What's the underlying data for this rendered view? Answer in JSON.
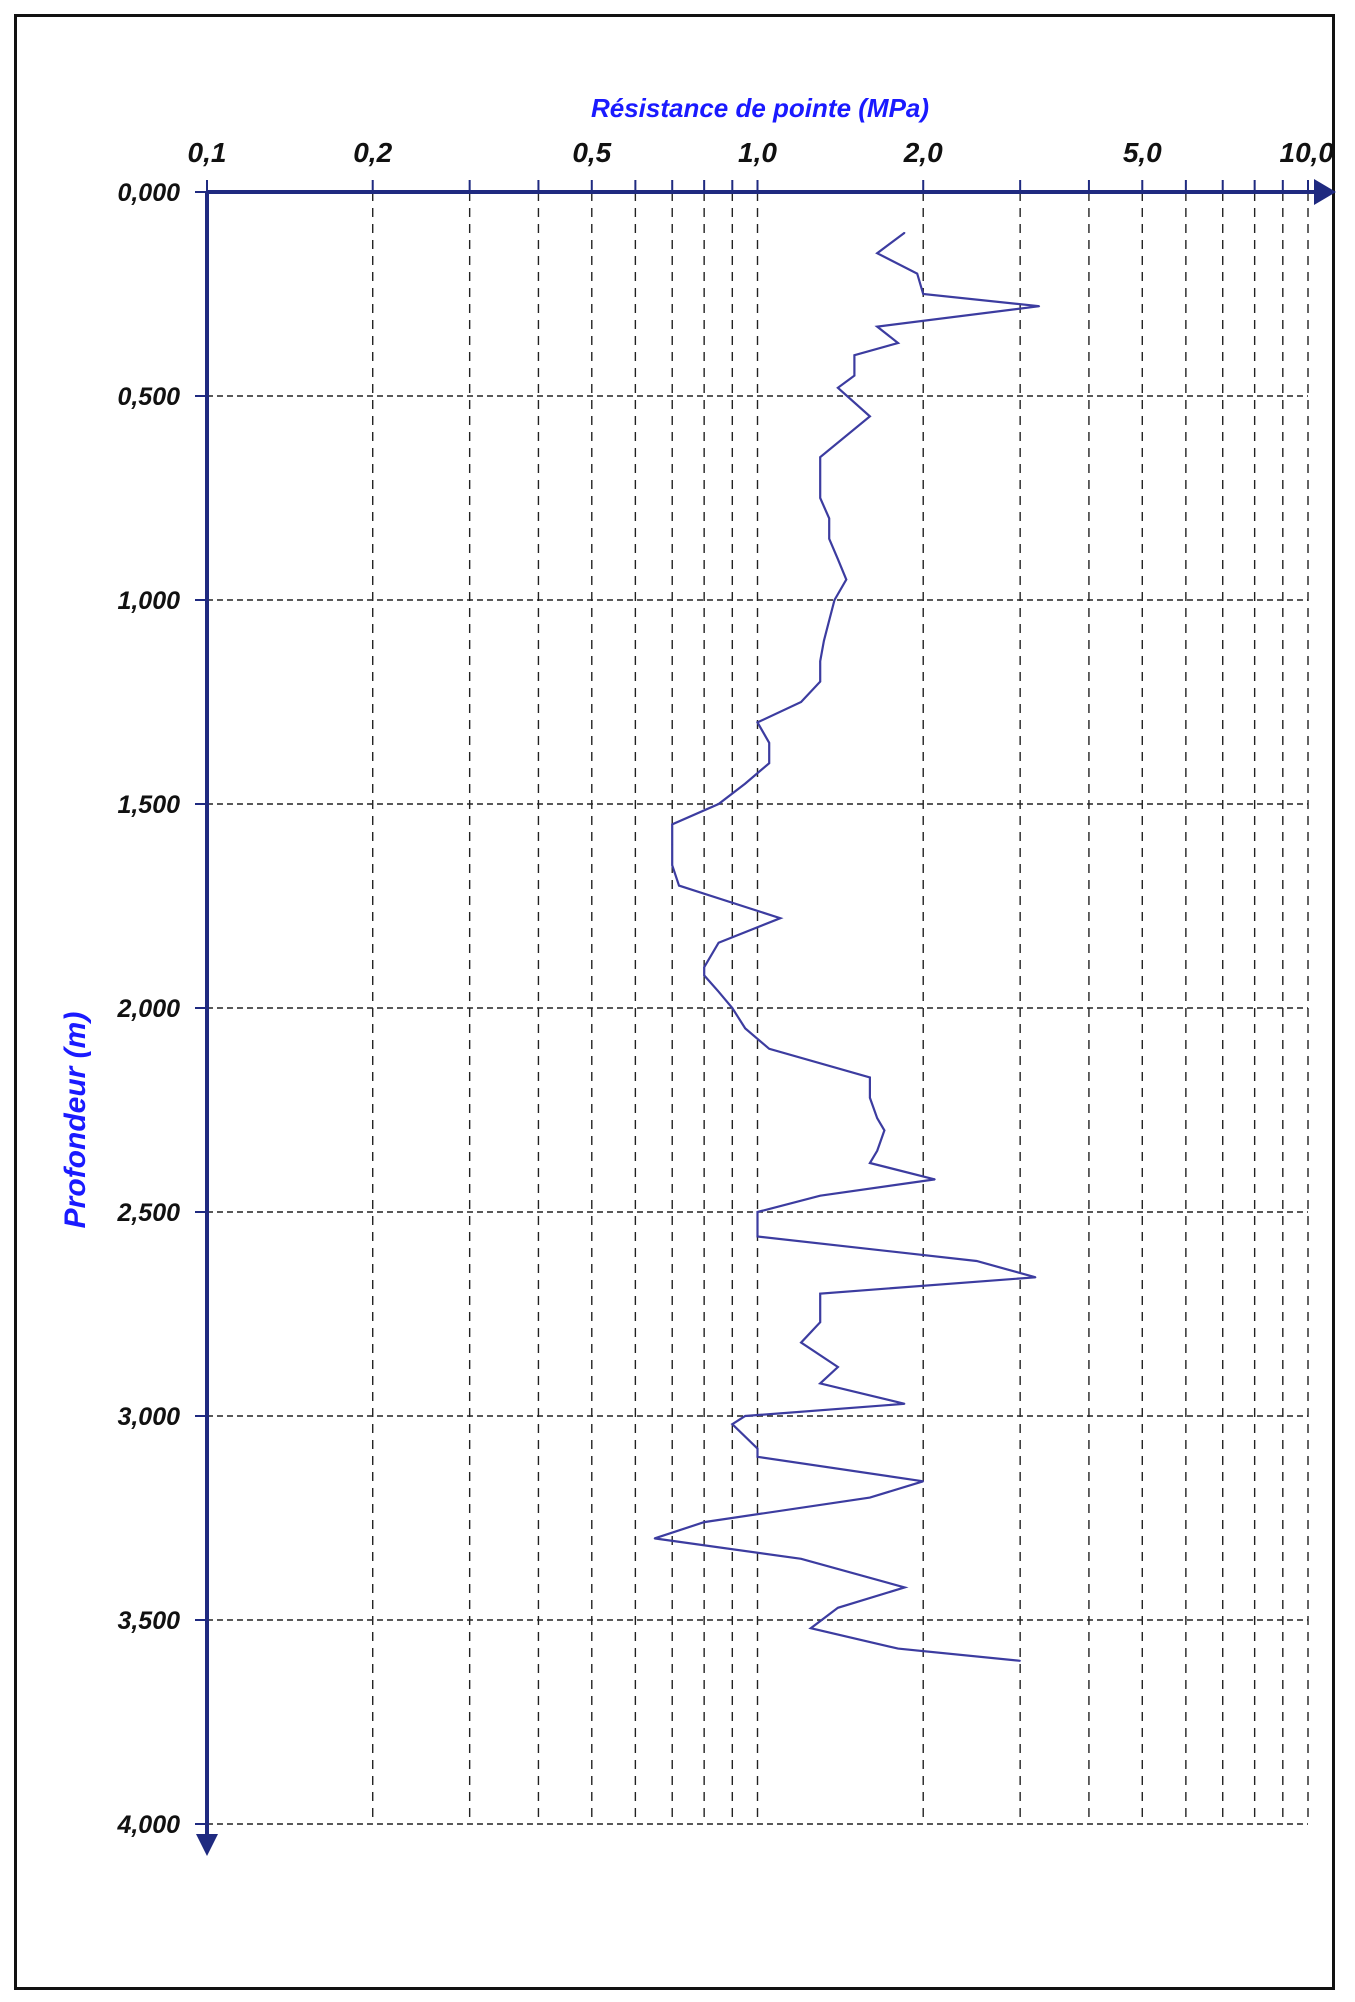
{
  "chart_data": {
    "type": "line",
    "title": "",
    "xlabel": "Résistance de pointe (MPa)",
    "ylabel": "Profondeur (m)",
    "x_scale": "log",
    "xlim": [
      0.1,
      10.0
    ],
    "ylim": [
      0.0,
      4.0
    ],
    "y_inverted": true,
    "grid": true,
    "colors": {
      "series": "#3c3ca0",
      "axis": "#1f2a80",
      "title": "#1a1aff",
      "grid": "#222222"
    },
    "x_tick_labels": [
      {
        "value": 0.1,
        "label": "0,1"
      },
      {
        "value": 0.2,
        "label": "0,2"
      },
      {
        "value": 0.5,
        "label": "0,5"
      },
      {
        "value": 1.0,
        "label": "1,0"
      },
      {
        "value": 2.0,
        "label": "2,0"
      },
      {
        "value": 5.0,
        "label": "5,0"
      },
      {
        "value": 10.0,
        "label": "10,0"
      }
    ],
    "x_gridlines": [
      0.2,
      0.3,
      0.4,
      0.5,
      0.6,
      0.7,
      0.8,
      0.9,
      1.0,
      2.0,
      3.0,
      4.0,
      5.0,
      6.0,
      7.0,
      8.0,
      9.0,
      10.0
    ],
    "y_tick_labels": [
      {
        "value": 0.0,
        "label": "0,000"
      },
      {
        "value": 0.5,
        "label": "0,500"
      },
      {
        "value": 1.0,
        "label": "1,000"
      },
      {
        "value": 1.5,
        "label": "1,500"
      },
      {
        "value": 2.0,
        "label": "2,000"
      },
      {
        "value": 2.5,
        "label": "2,500"
      },
      {
        "value": 3.0,
        "label": "3,000"
      },
      {
        "value": 3.5,
        "label": "3,500"
      },
      {
        "value": 4.0,
        "label": "4,000"
      }
    ],
    "series": [
      {
        "points": [
          [
            1.85,
            0.1
          ],
          [
            1.65,
            0.15
          ],
          [
            1.95,
            0.2
          ],
          [
            2.0,
            0.25
          ],
          [
            3.25,
            0.28
          ],
          [
            1.65,
            0.33
          ],
          [
            1.8,
            0.37
          ],
          [
            1.5,
            0.4
          ],
          [
            1.5,
            0.45
          ],
          [
            1.4,
            0.48
          ],
          [
            1.6,
            0.55
          ],
          [
            1.3,
            0.65
          ],
          [
            1.3,
            0.75
          ],
          [
            1.35,
            0.8
          ],
          [
            1.35,
            0.85
          ],
          [
            1.4,
            0.9
          ],
          [
            1.45,
            0.95
          ],
          [
            1.38,
            1.0
          ],
          [
            1.35,
            1.05
          ],
          [
            1.32,
            1.1
          ],
          [
            1.3,
            1.15
          ],
          [
            1.3,
            1.2
          ],
          [
            1.2,
            1.25
          ],
          [
            1.0,
            1.3
          ],
          [
            1.05,
            1.35
          ],
          [
            1.05,
            1.4
          ],
          [
            0.95,
            1.45
          ],
          [
            0.85,
            1.5
          ],
          [
            0.7,
            1.55
          ],
          [
            0.7,
            1.6
          ],
          [
            0.7,
            1.65
          ],
          [
            0.72,
            1.7
          ],
          [
            1.1,
            1.78
          ],
          [
            0.85,
            1.84
          ],
          [
            0.8,
            1.9
          ],
          [
            0.8,
            1.92
          ],
          [
            0.85,
            1.96
          ],
          [
            0.9,
            2.0
          ],
          [
            0.95,
            2.05
          ],
          [
            1.05,
            2.1
          ],
          [
            1.6,
            2.17
          ],
          [
            1.6,
            2.22
          ],
          [
            1.65,
            2.27
          ],
          [
            1.7,
            2.3
          ],
          [
            1.65,
            2.35
          ],
          [
            1.6,
            2.38
          ],
          [
            2.1,
            2.42
          ],
          [
            1.3,
            2.46
          ],
          [
            1.0,
            2.5
          ],
          [
            1.0,
            2.56
          ],
          [
            2.5,
            2.62
          ],
          [
            3.2,
            2.66
          ],
          [
            1.3,
            2.7
          ],
          [
            1.3,
            2.77
          ],
          [
            1.2,
            2.82
          ],
          [
            1.4,
            2.88
          ],
          [
            1.3,
            2.92
          ],
          [
            1.85,
            2.97
          ],
          [
            0.95,
            3.0
          ],
          [
            0.9,
            3.02
          ],
          [
            1.0,
            3.08
          ],
          [
            1.0,
            3.1
          ],
          [
            2.0,
            3.16
          ],
          [
            1.6,
            3.2
          ],
          [
            0.8,
            3.26
          ],
          [
            0.65,
            3.3
          ],
          [
            1.2,
            3.35
          ],
          [
            1.85,
            3.42
          ],
          [
            1.4,
            3.47
          ],
          [
            1.25,
            3.52
          ],
          [
            1.8,
            3.57
          ],
          [
            3.0,
            3.6
          ]
        ]
      }
    ]
  }
}
